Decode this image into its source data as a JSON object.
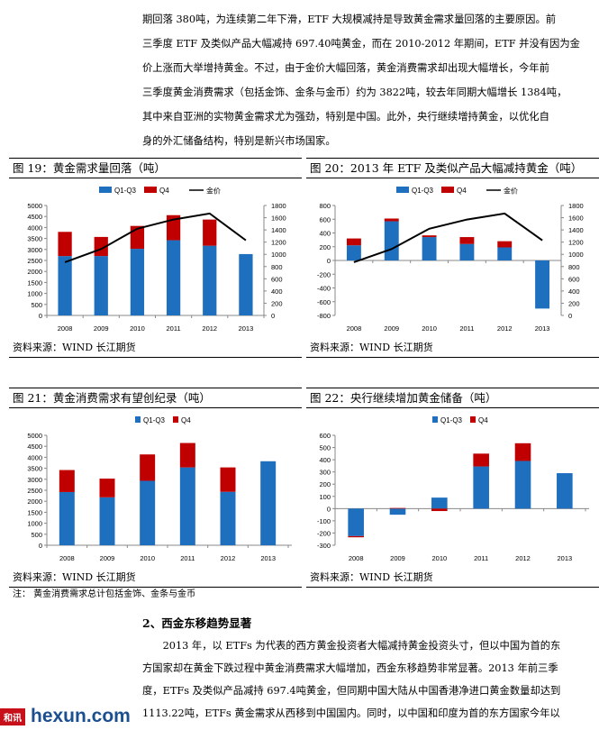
{
  "intro_paragraph": [
    "期回落 380吨，为连续第二年下滑，ETF 大规模减持是导致黄金需求量回落的主要原因。前",
    "三季度 ETF 及类似产品大幅减持 697.40吨黄金，而在 2010-2012 年期间，ETF 并没有因为金",
    "价上涨而大举增持黄金。不过，由于金价大幅回落，黄金消费需求却出现大幅增长，今年前",
    "三季度黄金消费需求（包括金饰、金条与金币）约为 3822吨，较去年同期大幅增长 1384吨，",
    "其中来自亚洲的实物黄金需求尤为强劲，特别是中国。此外，央行继续增持黄金，以优化自",
    "身的外汇储备结构，特别是新兴市场国家。"
  ],
  "figures": [
    {
      "title": "图 19：黄金需求量回落（吨）",
      "source": "资料来源：WIND   长江期货"
    },
    {
      "title": "图 20：2013 年 ETF 及类似产品大幅减持黄金（吨）",
      "source": "资料来源：WIND   长江期货"
    },
    {
      "title": "图 21：黄金消费需求有望创纪录（吨）",
      "source": "资料来源：WIND   长江期货",
      "note": "注：  黄金消费需求总计包括金饰、金条与金币"
    },
    {
      "title": "图 22：央行继续增加黄金储备（吨）",
      "source": "资料来源：WIND   长江期货"
    }
  ],
  "colors": {
    "q1q3": "#1F6FBF",
    "q4": "#C00000",
    "price": "#000000"
  },
  "chart_data": [
    {
      "type": "bar",
      "stacked": true,
      "categories": [
        "2008",
        "2009",
        "2010",
        "2011",
        "2012",
        "2013"
      ],
      "series": [
        {
          "name": "Q1-Q3",
          "values": [
            2700,
            2700,
            3030,
            3420,
            3170,
            2790
          ]
        },
        {
          "name": "Q4",
          "values": [
            1100,
            870,
            1040,
            1140,
            1190,
            0
          ]
        },
        {
          "name": "金价",
          "type": "line",
          "axis": "right",
          "values": [
            872,
            1087,
            1420,
            1570,
            1669,
            1230
          ]
        }
      ],
      "ylim": [
        0,
        5000
      ],
      "yticks": [
        0,
        500,
        1000,
        1500,
        2000,
        2500,
        3000,
        3500,
        4000,
        4500,
        5000
      ],
      "y2lim": [
        0,
        1800
      ],
      "y2ticks": [
        0,
        200,
        400,
        600,
        800,
        1000,
        1200,
        1400,
        1600,
        1800
      ],
      "legend": "top"
    },
    {
      "type": "bar",
      "stacked": true,
      "categories": [
        "2008",
        "2009",
        "2010",
        "2011",
        "2012",
        "2013"
      ],
      "series": [
        {
          "name": "Q1-Q3",
          "values": [
            220,
            570,
            340,
            240,
            190,
            -700
          ]
        },
        {
          "name": "Q4",
          "values": [
            100,
            40,
            25,
            100,
            90,
            0
          ]
        },
        {
          "name": "金价",
          "type": "line",
          "axis": "right",
          "values": [
            872,
            1087,
            1420,
            1570,
            1669,
            1230
          ]
        }
      ],
      "ylim": [
        -800,
        800
      ],
      "yticks": [
        -800,
        -600,
        -400,
        -200,
        0,
        200,
        400,
        600,
        800
      ],
      "y2lim": [
        0,
        1800
      ],
      "y2ticks": [
        0,
        200,
        400,
        600,
        800,
        1000,
        1200,
        1400,
        1600,
        1800
      ],
      "legend": "top"
    },
    {
      "type": "bar",
      "stacked": true,
      "categories": [
        "2008",
        "2009",
        "2010",
        "2011",
        "2012",
        "2013"
      ],
      "series": [
        {
          "name": "Q1-Q3",
          "values": [
            2420,
            2180,
            2930,
            3540,
            2430,
            3820
          ]
        },
        {
          "name": "Q4",
          "values": [
            1000,
            850,
            1200,
            1110,
            1110,
            0
          ]
        }
      ],
      "ylim": [
        0,
        5000
      ],
      "yticks": [
        0,
        500,
        1000,
        1500,
        2000,
        2500,
        3000,
        3500,
        4000,
        4500,
        5000
      ],
      "legend": "top"
    },
    {
      "type": "bar",
      "stacked": true,
      "categories": [
        "2008",
        "2009",
        "2010",
        "2011",
        "2012",
        "2013"
      ],
      "series": [
        {
          "name": "Q1-Q3",
          "values": [
            -225,
            -50,
            90,
            345,
            390,
            290
          ]
        },
        {
          "name": "Q4",
          "values": [
            -10,
            5,
            -20,
            105,
            145,
            0
          ]
        }
      ],
      "ylim": [
        -300,
        600
      ],
      "yticks": [
        -300,
        -200,
        -100,
        0,
        100,
        200,
        300,
        400,
        500,
        600
      ],
      "legend": "top"
    }
  ],
  "section_heading": "2、西金东移趋势显著",
  "section_paragraph": [
    "　　2013 年，以 ETFs 为代表的西方黄金投资者大幅减持黄金投资头寸，但以中国为首的东",
    "方国家却在黄金下跌过程中黄金消费需求大幅增加，西金东移趋势非常显著。2013 年前三季",
    "度，ETFs 及类似产品减持 697.4吨黄金，但同期中国大陆从中国香港净进口黄金数量却达到",
    "1113.22吨，ETFs 黄金需求从西移到中国国内。同时，以中国和印度为首的东方国家今年以"
  ],
  "watermark": {
    "logo": "和讯",
    "site": "hexun.com"
  }
}
